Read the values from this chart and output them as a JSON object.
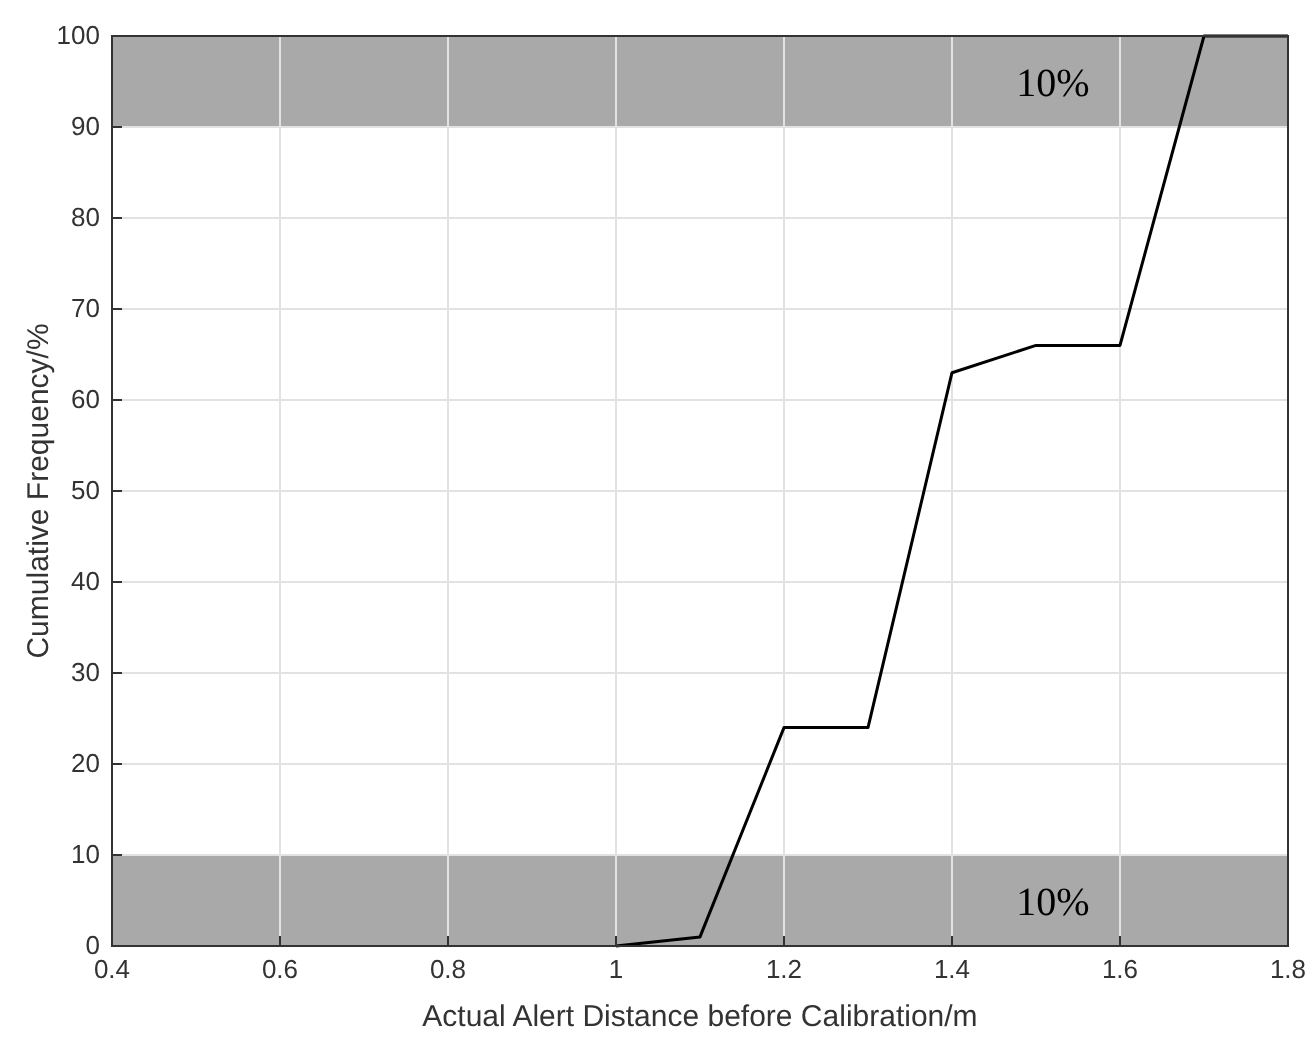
{
  "chart_data": {
    "type": "line",
    "xlabel": "Actual Alert Distance before Calibration/m",
    "ylabel": "Cumulative Frequency/%",
    "x": [
      1.0,
      1.1,
      1.2,
      1.3,
      1.4,
      1.5,
      1.6,
      1.7,
      1.8
    ],
    "series": [
      {
        "color": "#000000",
        "values": [
          0,
          1,
          24,
          24,
          63,
          66,
          66,
          100,
          100
        ]
      }
    ],
    "xlim": [
      0.4,
      1.8
    ],
    "xticks": [
      0.4,
      0.6,
      0.8,
      1,
      1.2,
      1.4,
      1.6,
      1.8
    ],
    "ylim": [
      0,
      100
    ],
    "yticks": [
      0,
      10,
      20,
      30,
      40,
      50,
      60,
      70,
      80,
      90,
      100
    ],
    "grid": true,
    "bands": [
      {
        "axis": "y",
        "from": 0,
        "to": 10,
        "label": "10%",
        "color": "#a9a9a9"
      },
      {
        "axis": "y",
        "from": 90,
        "to": 100,
        "label": "10%",
        "color": "#a9a9a9"
      }
    ]
  }
}
